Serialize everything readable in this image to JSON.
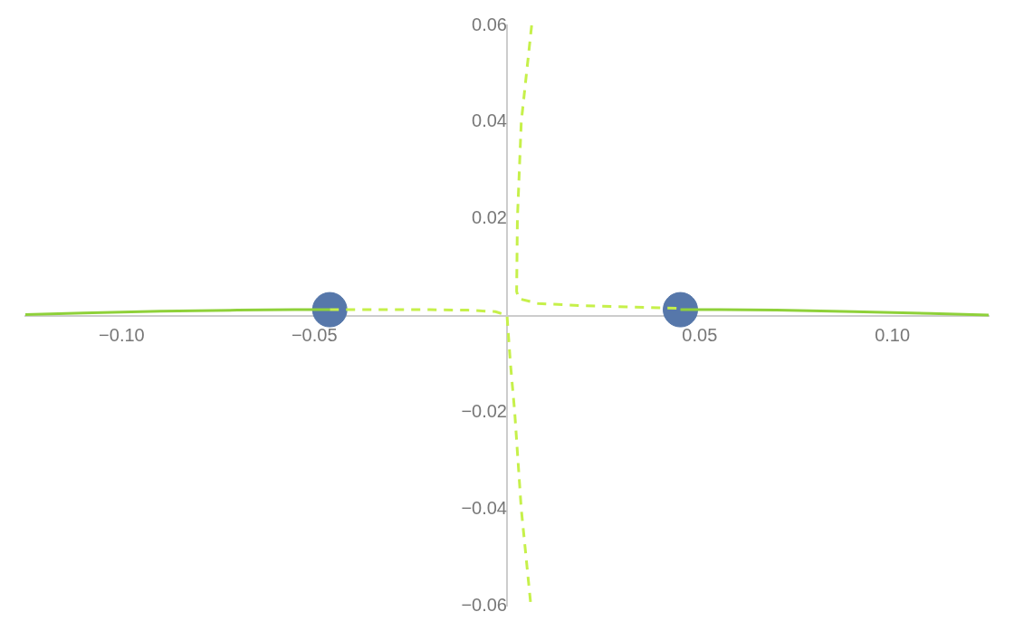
{
  "chart_data": {
    "type": "line",
    "xlim": [
      -0.125,
      0.125
    ],
    "ylim": [
      -0.06,
      0.06
    ],
    "xticks": [
      {
        "value": -0.1,
        "label": "−0.10"
      },
      {
        "value": -0.05,
        "label": "−0.05"
      },
      0.05,
      {
        "value": 0.1,
        "label": "0.10"
      }
    ],
    "yticks": [
      {
        "value": -0.06,
        "label": "−0.06"
      },
      {
        "value": -0.04,
        "label": "−0.04"
      },
      {
        "value": -0.02,
        "label": "−0.02"
      },
      0.02,
      0.04,
      0.06
    ],
    "grid": false,
    "legend": false,
    "series": [
      {
        "color": "#8fd13a",
        "line_style": "solid",
        "marker": "none",
        "x": [
          -0.125,
          -0.11,
          -0.09,
          -0.07,
          -0.055,
          -0.046
        ],
        "values": [
          0.0002,
          0.0005,
          0.0009,
          0.0011,
          0.0012,
          0.0012
        ]
      },
      {
        "color": "#8fd13a",
        "line_style": "solid",
        "marker": "none",
        "x": [
          0.045,
          0.055,
          0.07,
          0.09,
          0.11,
          0.125
        ],
        "values": [
          0.0012,
          0.0012,
          0.0011,
          0.0008,
          0.0004,
          0.0001
        ]
      },
      {
        "color": "#c6f04a",
        "line_style": "dashed",
        "marker": "none",
        "x": [
          -0.046,
          -0.02,
          -0.01,
          -0.003,
          0,
          0.0009,
          0.002,
          0.0037,
          0.0062
        ],
        "values": [
          0.0012,
          0.0012,
          0.0011,
          0.0008,
          0,
          -0.01,
          -0.02,
          -0.04,
          -0.06
        ]
      },
      {
        "color": "#c6f04a",
        "line_style": "dashed",
        "marker": "none",
        "x": [
          0.0064,
          0.0037,
          0.0027,
          0.0025,
          0.003,
          0.008,
          0.02,
          0.045
        ],
        "values": [
          0.06,
          0.04,
          0.02,
          0.005,
          0.0035,
          0.0025,
          0.002,
          0.0015
        ]
      },
      {
        "type": "scatter",
        "color": "#5677aa",
        "marker": "circle",
        "x": [
          -0.046,
          0.045
        ],
        "values": [
          0.0012,
          0.0012
        ]
      }
    ]
  }
}
